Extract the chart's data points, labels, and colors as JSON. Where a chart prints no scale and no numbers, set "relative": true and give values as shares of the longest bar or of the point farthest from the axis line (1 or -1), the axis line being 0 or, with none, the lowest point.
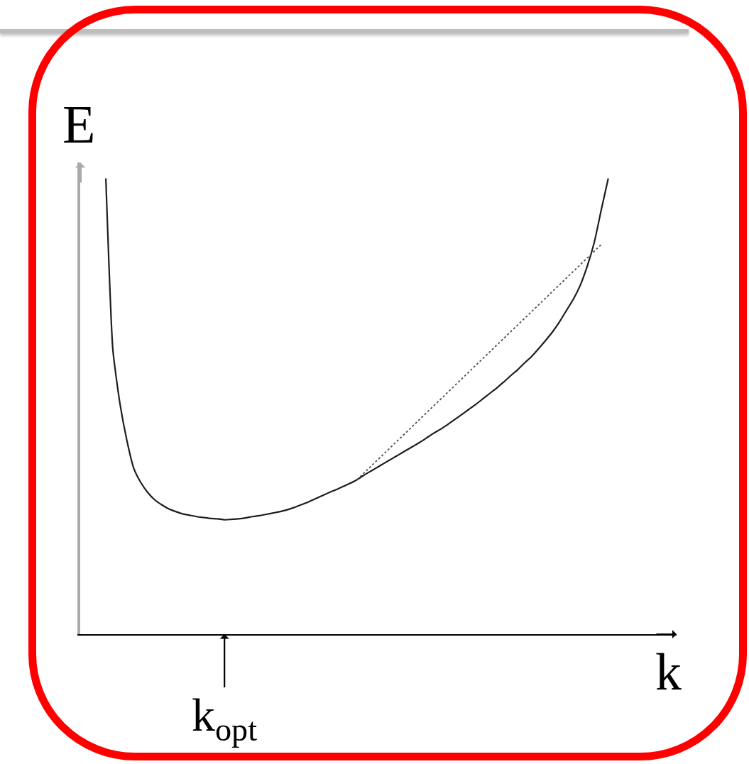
{
  "chart_data": {
    "type": "line",
    "xlabel": "k",
    "ylabel": "E",
    "annotations": [
      "k$_{opt}$"
    ],
    "relative": true,
    "categories": [
      null,
      null,
      null,
      null,
      null,
      null,
      null,
      null,
      null,
      null,
      null,
      null,
      null,
      null,
      null,
      null,
      null,
      null,
      null,
      null,
      null,
      null,
      null,
      null,
      null,
      null,
      null,
      null,
      null,
      null,
      null,
      null,
      null,
      null,
      null,
      null,
      null,
      null,
      null,
      null,
      null,
      null,
      null,
      null,
      null,
      null,
      null,
      null,
      null,
      null,
      null,
      null,
      null,
      null,
      null,
      null,
      null,
      null,
      null,
      null,
      null,
      null,
      null,
      null,
      null,
      null,
      null,
      null,
      null,
      null,
      null,
      null,
      null
    ],
    "series": [
      {
        "color": "#1e1e1e",
        "values": [
          1.0,
          0.625,
          0.508,
          0.426,
          0.364,
          0.333,
          0.311,
          0.295,
          0.284,
          0.275,
          0.269,
          0.264,
          0.261,
          0.258,
          0.256,
          0.254,
          0.253,
          0.251,
          0.252,
          0.253,
          0.255,
          0.258,
          0.26,
          0.263,
          0.266,
          0.269,
          0.273,
          0.278,
          0.284,
          0.29,
          0.297,
          0.304,
          0.311,
          0.317,
          0.324,
          0.331,
          0.339,
          0.349,
          0.358,
          0.367,
          0.376,
          0.385,
          0.394,
          0.403,
          0.412,
          0.421,
          0.431,
          0.441,
          0.45,
          0.46,
          0.471,
          0.482,
          0.493,
          0.504,
          0.516,
          0.528,
          0.54,
          0.553,
          0.567,
          0.58,
          0.595,
          0.609,
          0.626,
          0.644,
          0.663,
          0.685,
          0.71,
          0.735,
          0.766,
          0.808,
          0.86,
          0.931,
          1.0
        ]
      },
      {
        "color": "#4d4d4d",
        "line_style": "dotted",
        "values": [
          null,
          null,
          null,
          null,
          null,
          null,
          null,
          null,
          null,
          null,
          null,
          null,
          null,
          null,
          null,
          null,
          null,
          null,
          null,
          null,
          null,
          null,
          null,
          null,
          null,
          null,
          null,
          null,
          null,
          null,
          null,
          null,
          null,
          null,
          null,
          null,
          0.339,
          null,
          null,
          null,
          null,
          null,
          null,
          null,
          null,
          null,
          null,
          null,
          null,
          null,
          null,
          null,
          null,
          null,
          null,
          null,
          null,
          null,
          null,
          null,
          null,
          null,
          null,
          null,
          null,
          null,
          null,
          null,
          null,
          null,
          null,
          0.855,
          null
        ]
      }
    ]
  }
}
